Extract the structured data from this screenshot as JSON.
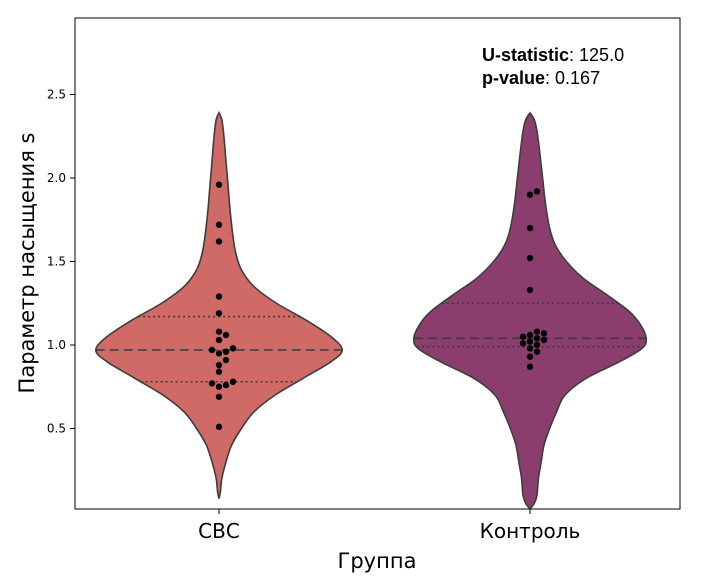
{
  "chart_data": {
    "type": "violin",
    "title": "",
    "xlabel": "Группа",
    "ylabel": "Параметр насыщения s",
    "ylim": [
      0.03,
      2.98
    ],
    "yticks": [
      "0.5",
      "1.0",
      "1.5",
      "2.0",
      "2.5"
    ],
    "categories": [
      "СВС",
      "Контроль"
    ],
    "grid": false,
    "annotation": {
      "u_label": "U-statistic",
      "u_value": ": 125.0",
      "p_label": "p-value",
      "p_value": ": 0.167"
    },
    "series": [
      {
        "category": "СВС",
        "color": "#d06a66",
        "quartiles": {
          "q1": 0.78,
          "median": 0.97,
          "q3": 1.17
        },
        "density": [
          [
            0.08,
            0.0
          ],
          [
            0.12,
            0.01
          ],
          [
            0.2,
            0.02
          ],
          [
            0.3,
            0.05
          ],
          [
            0.4,
            0.09
          ],
          [
            0.5,
            0.16
          ],
          [
            0.6,
            0.25
          ],
          [
            0.7,
            0.4
          ],
          [
            0.8,
            0.6
          ],
          [
            0.9,
            0.8
          ],
          [
            0.97,
            0.88
          ],
          [
            1.05,
            0.8
          ],
          [
            1.15,
            0.62
          ],
          [
            1.25,
            0.41
          ],
          [
            1.35,
            0.25
          ],
          [
            1.45,
            0.16
          ],
          [
            1.55,
            0.12
          ],
          [
            1.65,
            0.1
          ],
          [
            1.8,
            0.08
          ],
          [
            1.95,
            0.065
          ],
          [
            2.1,
            0.05
          ],
          [
            2.25,
            0.035
          ],
          [
            2.35,
            0.02
          ],
          [
            2.39,
            0.0
          ]
        ],
        "points": [
          0.51,
          0.69,
          0.75,
          0.76,
          0.77,
          0.78,
          0.84,
          0.88,
          0.91,
          0.95,
          0.96,
          0.97,
          0.98,
          1.03,
          1.06,
          1.08,
          1.19,
          1.29,
          1.62,
          1.72,
          1.96
        ]
      },
      {
        "category": "Контроль",
        "color": "#8b3e6e",
        "quartiles": {
          "q1": 0.99,
          "median": 1.04,
          "q3": 1.25
        },
        "density": [
          [
            0.02,
            0.0
          ],
          [
            0.05,
            0.03
          ],
          [
            0.1,
            0.05
          ],
          [
            0.2,
            0.06
          ],
          [
            0.3,
            0.08
          ],
          [
            0.4,
            0.1
          ],
          [
            0.5,
            0.14
          ],
          [
            0.6,
            0.19
          ],
          [
            0.7,
            0.25
          ],
          [
            0.8,
            0.4
          ],
          [
            0.9,
            0.64
          ],
          [
            0.98,
            0.8
          ],
          [
            1.04,
            0.83
          ],
          [
            1.12,
            0.79
          ],
          [
            1.2,
            0.71
          ],
          [
            1.3,
            0.55
          ],
          [
            1.4,
            0.38
          ],
          [
            1.5,
            0.26
          ],
          [
            1.6,
            0.18
          ],
          [
            1.7,
            0.14
          ],
          [
            1.85,
            0.11
          ],
          [
            2.0,
            0.09
          ],
          [
            2.15,
            0.07
          ],
          [
            2.28,
            0.05
          ],
          [
            2.35,
            0.03
          ],
          [
            2.39,
            0.0
          ]
        ],
        "points": [
          0.87,
          0.93,
          0.96,
          0.98,
          1.0,
          1.01,
          1.02,
          1.03,
          1.04,
          1.05,
          1.06,
          1.07,
          1.08,
          1.33,
          1.52,
          1.7,
          1.9,
          1.92
        ]
      }
    ]
  }
}
